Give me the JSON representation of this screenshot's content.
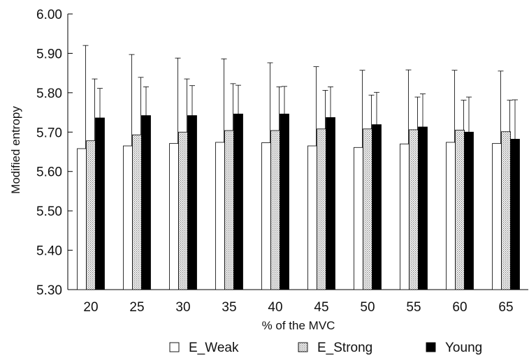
{
  "chart_data": {
    "type": "bar",
    "title": "",
    "xlabel": "% of the MVC",
    "ylabel": "Modified entropy",
    "ylim": [
      5.3,
      6.0
    ],
    "yticks": [
      "5.30",
      "5.40",
      "5.50",
      "5.60",
      "5.70",
      "5.80",
      "5.90",
      "6.00"
    ],
    "categories": [
      "20",
      "25",
      "30",
      "35",
      "40",
      "45",
      "50",
      "55",
      "60",
      "65"
    ],
    "legend_position": "bottom",
    "grid": false,
    "series": [
      {
        "name": "E_Weak",
        "fill": "white",
        "values": [
          5.658,
          5.665,
          5.671,
          5.674,
          5.673,
          5.665,
          5.661,
          5.67,
          5.674,
          5.671
        ],
        "error_upper": [
          5.92,
          5.897,
          5.888,
          5.886,
          5.876,
          5.866,
          5.857,
          5.858,
          5.857,
          5.855
        ]
      },
      {
        "name": "E_Strong",
        "fill": "dotted",
        "values": [
          5.678,
          5.693,
          5.7,
          5.704,
          5.704,
          5.708,
          5.708,
          5.706,
          5.705,
          5.701
        ],
        "error_upper": [
          5.835,
          5.839,
          5.835,
          5.823,
          5.815,
          5.806,
          5.794,
          5.789,
          5.781,
          5.781
        ]
      },
      {
        "name": "Young",
        "fill": "black",
        "values": [
          5.736,
          5.742,
          5.742,
          5.746,
          5.746,
          5.737,
          5.719,
          5.713,
          5.7,
          5.682
        ],
        "error_upper": [
          5.811,
          5.815,
          5.818,
          5.819,
          5.816,
          5.815,
          5.801,
          5.797,
          5.789,
          5.782
        ]
      }
    ]
  }
}
